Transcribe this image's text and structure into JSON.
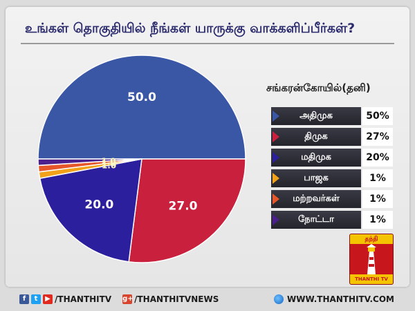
{
  "title": "உங்கள் தொகுதியில் நீங்கள் யாருக்கு வாக்களிப்பீர்கள்?",
  "constituency": "சங்கரன்கோயில்(தனி)",
  "chart_data": {
    "type": "pie",
    "title": "உங்கள் தொகுதியில் நீங்கள் யாருக்கு வாக்களிப்பீர்கள்?",
    "categories": [
      "அதிமுக",
      "திமுக",
      "மதிமுக",
      "பாஜக",
      "மற்றவர்கள்",
      "நோட்டா"
    ],
    "values": [
      50,
      27,
      20,
      1,
      1,
      1
    ],
    "value_labels": [
      "50.0",
      "27.0",
      "20.0",
      "1.0",
      "1.0",
      "1.0"
    ],
    "legend_values": [
      "50%",
      "27%",
      "20%",
      "1%",
      "1%",
      "1%"
    ],
    "colors": [
      "#3a57a6",
      "#c8203d",
      "#2c1f9e",
      "#f2a21a",
      "#e5562a",
      "#4b1f8c"
    ],
    "legend_placement": "right"
  },
  "logo": {
    "top_text": "தந்தி",
    "bottom_text": "THANTHI TV"
  },
  "footer": {
    "social_handle": "/THANTHITV",
    "gplus_handle": "/THANTHITVNEWS",
    "website": "WWW.THANTHITV.COM",
    "facebook_glyph": "f",
    "twitter_glyph": "t",
    "youtube_glyph": "▶",
    "gplus_glyph": "g+"
  }
}
